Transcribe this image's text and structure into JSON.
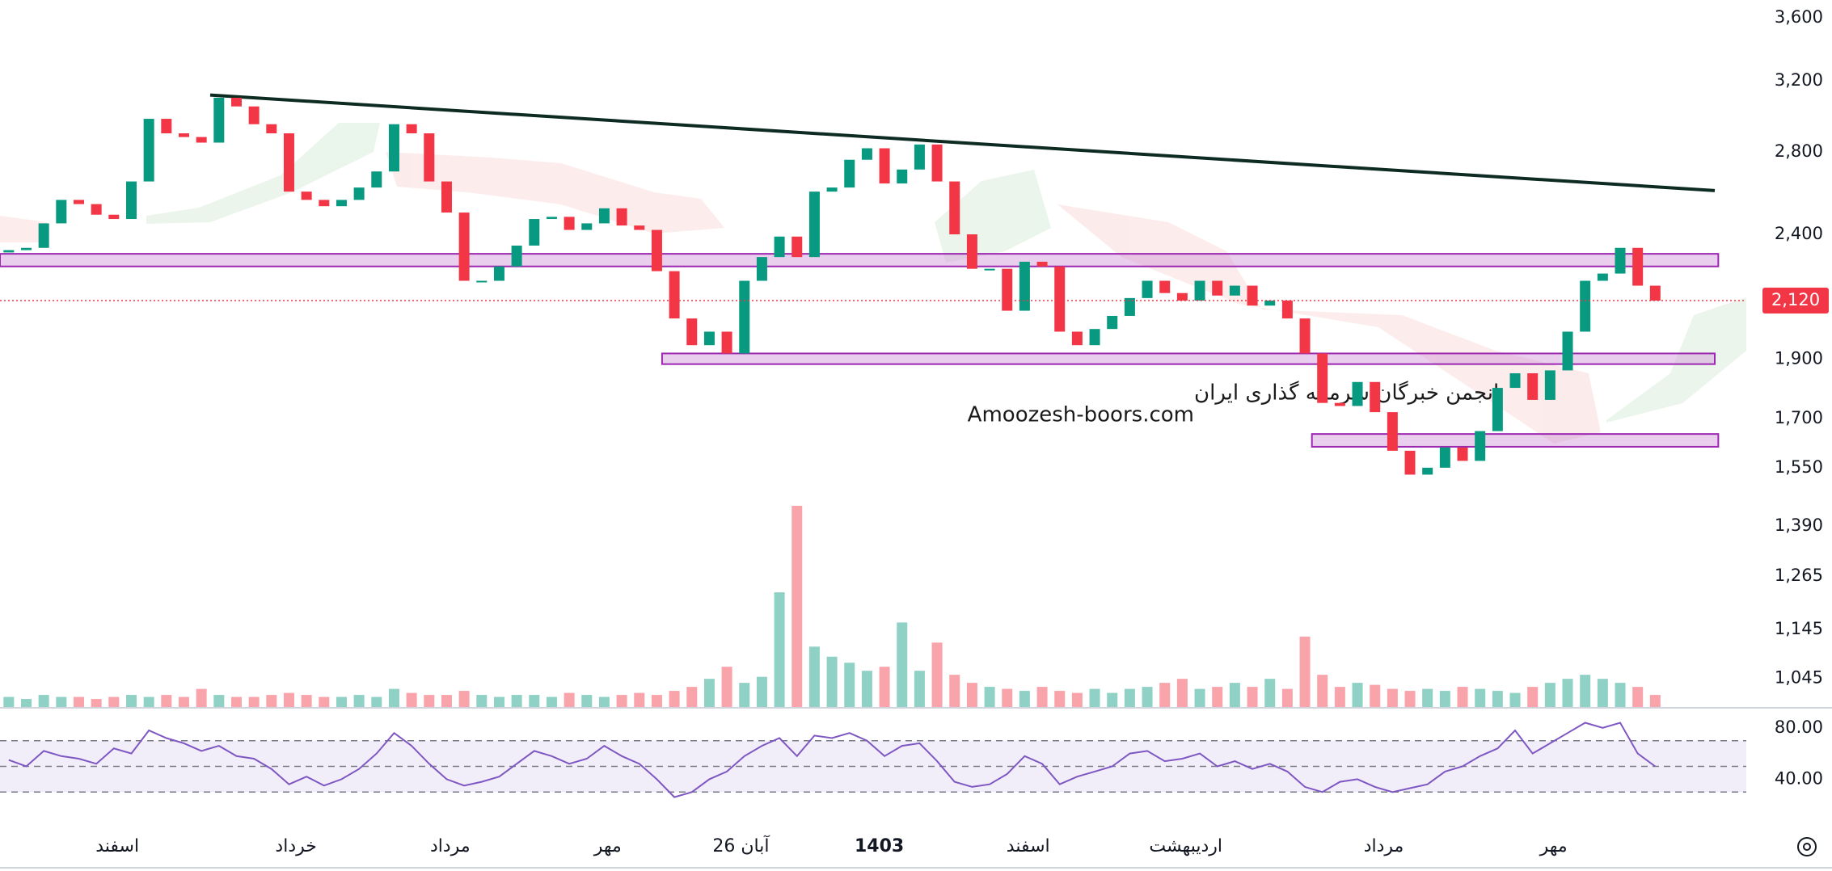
{
  "chart_data": {
    "type": "candlestick",
    "log_scale": true,
    "ylim": [
      990,
      3723
    ],
    "yticks": [
      {
        "value": 3600,
        "label": "3,600"
      },
      {
        "value": 3200,
        "label": "3,200"
      },
      {
        "value": 2800,
        "label": "2,800"
      },
      {
        "value": 2400,
        "label": "2,400"
      },
      {
        "value": 1900,
        "label": "1,900"
      },
      {
        "value": 1700,
        "label": "1,700"
      },
      {
        "value": 1550,
        "label": "1,550"
      },
      {
        "value": 1390,
        "label": "1,390"
      },
      {
        "value": 1265,
        "label": "1,265"
      },
      {
        "value": 1145,
        "label": "1,145"
      },
      {
        "value": 1045,
        "label": "1,045"
      }
    ],
    "xlim": [
      -0.5,
      99.2
    ],
    "xticks": [
      {
        "value": 6.2,
        "label": "اسفند"
      },
      {
        "value": 16.4,
        "label": "خرداد"
      },
      {
        "value": 25.2,
        "label": "مرداد"
      },
      {
        "value": 34.2,
        "label": "مهر"
      },
      {
        "value": 41.8,
        "label": "26 آبان"
      },
      {
        "value": 49.7,
        "label": "1403"
      },
      {
        "value": 58.2,
        "label": "اسفند"
      },
      {
        "value": 67.2,
        "label": "اردیبهشت"
      },
      {
        "value": 78.5,
        "label": "مرداد"
      },
      {
        "value": 88.2,
        "label": "مهر"
      }
    ],
    "up_color": "#089981",
    "down_color": "#f23645",
    "open": [
      2320,
      2330,
      2340,
      2450,
      2560,
      2540,
      2490,
      2470,
      2650,
      2980,
      2900,
      2880,
      2850,
      3100,
      3050,
      2950,
      2900,
      2600,
      2560,
      2530,
      2560,
      2620,
      2700,
      2950,
      2900,
      2650,
      2500,
      2200,
      2200,
      2260,
      2350,
      2470,
      2480,
      2420,
      2450,
      2520,
      2440,
      2420,
      2240,
      2050,
      1950,
      2000,
      1920,
      2200,
      2300,
      2390,
      2300,
      2600,
      2620,
      2760,
      2820,
      2640,
      2710,
      2840,
      2650,
      2400,
      2250,
      2250,
      2080,
      2280,
      2260,
      2000,
      1950,
      2010,
      2060,
      2130,
      2200,
      2150,
      2120,
      2200,
      2140,
      2180,
      2100,
      2120,
      2050,
      1920,
      1750,
      1740,
      1820,
      1720,
      1600,
      1530,
      1550,
      1610,
      1570,
      1660,
      1800,
      1850,
      1760,
      1860,
      2000,
      2200,
      2230,
      2340,
      2180
    ],
    "close": [
      2330,
      2340,
      2450,
      2560,
      2540,
      2490,
      2470,
      2650,
      2980,
      2900,
      2880,
      2850,
      3100,
      3050,
      2950,
      2900,
      2600,
      2560,
      2530,
      2560,
      2620,
      2700,
      2950,
      2900,
      2650,
      2500,
      2200,
      2200,
      2260,
      2350,
      2470,
      2480,
      2420,
      2450,
      2520,
      2440,
      2420,
      2240,
      2050,
      1950,
      2000,
      1920,
      2200,
      2300,
      2390,
      2300,
      2600,
      2620,
      2760,
      2820,
      2640,
      2710,
      2840,
      2650,
      2400,
      2250,
      2250,
      2080,
      2280,
      2260,
      2000,
      1950,
      2010,
      2060,
      2130,
      2200,
      2150,
      2120,
      2200,
      2140,
      2180,
      2100,
      2120,
      2050,
      1920,
      1750,
      1740,
      1820,
      1720,
      1600,
      1530,
      1550,
      1610,
      1570,
      1660,
      1800,
      1850,
      1760,
      1860,
      2000,
      2200,
      2230,
      2340,
      2180,
      2120
    ],
    "last_price": {
      "value": 2120,
      "label": "2,120"
    },
    "last_price_color": "#f23645",
    "zones": [
      {
        "x": [
          -0.5,
          97.6
        ],
        "y": [
          2260,
          2314
        ]
      },
      {
        "x": [
          37.3,
          97.4
        ],
        "y": [
          1882,
          1920
        ]
      },
      {
        "x": [
          74.4,
          97.6
        ],
        "y": [
          1612,
          1651
        ]
      }
    ],
    "trendline": {
      "x": [
        11.5,
        97.4
      ],
      "y": [
        3116,
        2605
      ],
      "color": "#0d2b22"
    },
    "annotations": [
      "انجمن خبرگان سرمایه گذاری ایران",
      "Amoozesh-boors.com"
    ],
    "volume": {
      "values": [
        5,
        4,
        6,
        5,
        5,
        4,
        5,
        6,
        5,
        6,
        5,
        9,
        6,
        5,
        5,
        6,
        7,
        6,
        5,
        5,
        6,
        5,
        9,
        7,
        6,
        6,
        8,
        6,
        5,
        6,
        6,
        5,
        7,
        6,
        5,
        6,
        7,
        6,
        8,
        10,
        14,
        20,
        12,
        15,
        57,
        100,
        30,
        25,
        22,
        18,
        20,
        42,
        18,
        32,
        16,
        12,
        10,
        9,
        8,
        10,
        8,
        7,
        9,
        7,
        9,
        10,
        12,
        14,
        9,
        10,
        12,
        10,
        14,
        9,
        35,
        16,
        10,
        12,
        11,
        9,
        8,
        9,
        8,
        10,
        9,
        8,
        7,
        10,
        12,
        14,
        16,
        14,
        12,
        10,
        6
      ]
    },
    "rsi": {
      "color": "#7e57c2",
      "ylim": [
        5,
        95
      ],
      "yticks": [
        {
          "value": 80,
          "label": "80.00"
        },
        {
          "value": 40,
          "label": "40.00"
        }
      ],
      "bands": [
        70,
        50,
        30
      ],
      "values": [
        55,
        50,
        62,
        58,
        56,
        52,
        64,
        60,
        78,
        72,
        68,
        62,
        66,
        58,
        56,
        48,
        36,
        42,
        35,
        40,
        48,
        60,
        76,
        66,
        52,
        40,
        35,
        38,
        42,
        52,
        62,
        58,
        52,
        56,
        66,
        58,
        52,
        40,
        26,
        30,
        40,
        46,
        58,
        66,
        72,
        58,
        74,
        72,
        76,
        70,
        58,
        66,
        68,
        54,
        38,
        34,
        36,
        44,
        58,
        52,
        36,
        42,
        46,
        50,
        60,
        62,
        54,
        56,
        60,
        50,
        54,
        48,
        52,
        46,
        34,
        30,
        38,
        40,
        34,
        30,
        33,
        36,
        46,
        50,
        58,
        64,
        78,
        60,
        68,
        76,
        84,
        80,
        84,
        60,
        50
      ]
    }
  }
}
